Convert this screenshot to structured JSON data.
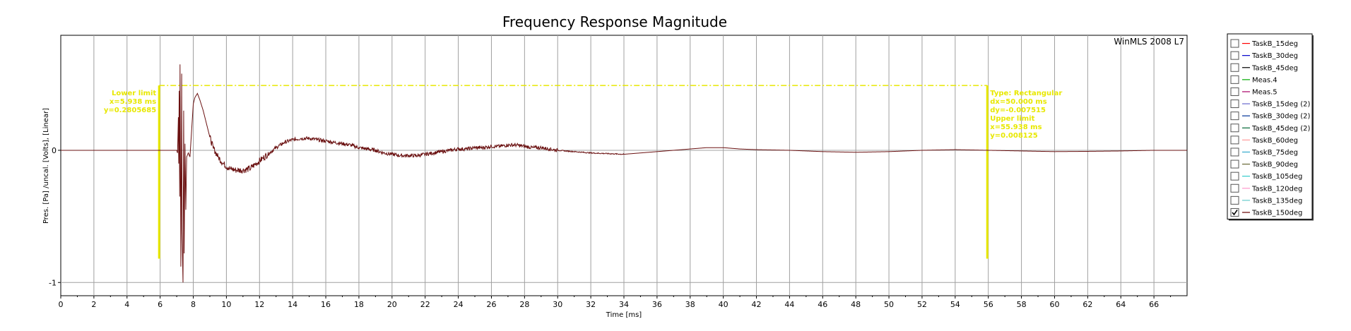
{
  "chart_data": {
    "type": "line",
    "title": "Frequency Response Magnitude",
    "brand": "WinMLS 2008 L7",
    "xlabel": "Time [ms]",
    "ylabel": "Pres. [Pa] /uncal. [Volts], [Linear]",
    "xlim": [
      0,
      68
    ],
    "ylim": [
      -1.1,
      0.87
    ],
    "x_ticks": [
      "0",
      "2",
      "4",
      "6",
      "8",
      "10",
      "12",
      "14",
      "16",
      "18",
      "20",
      "22",
      "24",
      "26",
      "28",
      "30",
      "32",
      "34",
      "36",
      "38",
      "40",
      "42",
      "44",
      "46",
      "48",
      "50",
      "52",
      "54",
      "56",
      "58",
      "60",
      "62",
      "64",
      "66"
    ],
    "y_ticks": [
      {
        "value": 0,
        "label": "0"
      },
      {
        "value": -1,
        "label": "-1"
      }
    ],
    "grid": true,
    "legend_position": "right",
    "series": [
      {
        "name": "TaskB_150deg",
        "color": "#6a1010",
        "points": [
          [
            0,
            0
          ],
          [
            7.0,
            0
          ],
          [
            7.05,
            -0.02
          ],
          [
            7.1,
            0.25
          ],
          [
            7.12,
            -0.1
          ],
          [
            7.15,
            0.45
          ],
          [
            7.18,
            -0.35
          ],
          [
            7.2,
            0.65
          ],
          [
            7.25,
            -0.88
          ],
          [
            7.3,
            0.58
          ],
          [
            7.32,
            -0.6
          ],
          [
            7.38,
            -1.0
          ],
          [
            7.42,
            0.3
          ],
          [
            7.45,
            -0.78
          ],
          [
            7.5,
            0.05
          ],
          [
            7.55,
            -0.45
          ],
          [
            7.6,
            -0.05
          ],
          [
            7.7,
            -0.02
          ],
          [
            7.8,
            -0.05
          ],
          [
            7.9,
            0.15
          ],
          [
            8.0,
            0.35
          ],
          [
            8.1,
            0.4
          ],
          [
            8.25,
            0.43
          ],
          [
            8.4,
            0.38
          ],
          [
            8.6,
            0.3
          ],
          [
            8.8,
            0.2
          ],
          [
            9.0,
            0.1
          ],
          [
            9.2,
            0.02
          ],
          [
            9.5,
            -0.05
          ],
          [
            9.8,
            -0.1
          ],
          [
            10.2,
            -0.14
          ],
          [
            10.6,
            -0.15
          ],
          [
            11.0,
            -0.15
          ],
          [
            11.4,
            -0.14
          ],
          [
            11.8,
            -0.1
          ],
          [
            12.2,
            -0.06
          ],
          [
            12.6,
            -0.02
          ],
          [
            13.0,
            0.02
          ],
          [
            13.5,
            0.06
          ],
          [
            14.0,
            0.08
          ],
          [
            14.5,
            0.09
          ],
          [
            15.0,
            0.09
          ],
          [
            15.5,
            0.08
          ],
          [
            16.0,
            0.07
          ],
          [
            16.5,
            0.06
          ],
          [
            17.0,
            0.05
          ],
          [
            17.5,
            0.04
          ],
          [
            18.0,
            0.02
          ],
          [
            18.5,
            0.01
          ],
          [
            19.0,
            0.0
          ],
          [
            19.5,
            -0.02
          ],
          [
            20.0,
            -0.03
          ],
          [
            20.5,
            -0.04
          ],
          [
            21.0,
            -0.04
          ],
          [
            21.5,
            -0.04
          ],
          [
            22.0,
            -0.03
          ],
          [
            22.5,
            -0.02
          ],
          [
            23.0,
            -0.01
          ],
          [
            23.5,
            0.0
          ],
          [
            24.0,
            0.01
          ],
          [
            24.5,
            0.01
          ],
          [
            25.0,
            0.02
          ],
          [
            25.5,
            0.02
          ],
          [
            26.0,
            0.03
          ],
          [
            26.5,
            0.03
          ],
          [
            27.0,
            0.04
          ],
          [
            27.5,
            0.04
          ],
          [
            28.0,
            0.03
          ],
          [
            28.5,
            0.02
          ],
          [
            29.0,
            0.02
          ],
          [
            29.5,
            0.01
          ],
          [
            30.0,
            0.0
          ],
          [
            31.0,
            -0.01
          ],
          [
            32.0,
            -0.02
          ],
          [
            33.0,
            -0.025
          ],
          [
            34.0,
            -0.03
          ],
          [
            35.0,
            -0.02
          ],
          [
            36.0,
            -0.01
          ],
          [
            37.0,
            0.0
          ],
          [
            38.0,
            0.01
          ],
          [
            39.0,
            0.02
          ],
          [
            40.0,
            0.02
          ],
          [
            41.0,
            0.01
          ],
          [
            42.0,
            0.005
          ],
          [
            44.0,
            0.0
          ],
          [
            46.0,
            -0.01
          ],
          [
            48.0,
            -0.015
          ],
          [
            50.0,
            -0.01
          ],
          [
            52.0,
            0.0
          ],
          [
            54.0,
            0.005
          ],
          [
            56.0,
            0.0
          ],
          [
            58.0,
            -0.005
          ],
          [
            60.0,
            -0.01
          ],
          [
            62.0,
            -0.008
          ],
          [
            64.0,
            -0.005
          ],
          [
            66.0,
            0.0
          ],
          [
            68.0,
            0.0
          ]
        ]
      }
    ],
    "cursors": {
      "color": "#e8e800",
      "lower": {
        "x": 5.938,
        "y_bottom": -0.82,
        "y_top": 0.49,
        "text": [
          "Lower limit",
          "x=5.938 ms",
          "y=0.2805685"
        ]
      },
      "upper": {
        "x": 55.938,
        "y_bottom": -0.82,
        "y_top": 0.49,
        "text": [
          "Type: Rectangular",
          "dx=50.000 ms",
          "dy=-0.007515",
          "Upper limit",
          "x=55.938 ms",
          "y=0.008125"
        ]
      },
      "level": 0.49
    },
    "legend": [
      {
        "name": "TaskB_15deg",
        "color": "#ff0000",
        "checked": false
      },
      {
        "name": "TaskB_30deg",
        "color": "#0000cc",
        "checked": false
      },
      {
        "name": "TaskB_45deg",
        "color": "#000000",
        "checked": false
      },
      {
        "name": "Meas.4",
        "color": "#00aa00",
        "checked": false
      },
      {
        "name": "Meas.5",
        "color": "#aa0066",
        "checked": false
      },
      {
        "name": "TaskB_15deg (2)",
        "color": "#6666cc",
        "checked": false
      },
      {
        "name": "TaskB_30deg (2)",
        "color": "#003399",
        "checked": false
      },
      {
        "name": "TaskB_45deg (2)",
        "color": "#006633",
        "checked": false
      },
      {
        "name": "TaskB_60deg",
        "color": "#ff9999",
        "checked": false
      },
      {
        "name": "TaskB_75deg",
        "color": "#33aacc",
        "checked": false
      },
      {
        "name": "TaskB_90deg",
        "color": "#666633",
        "checked": false
      },
      {
        "name": "TaskB_105deg",
        "color": "#33cccc",
        "checked": false
      },
      {
        "name": "TaskB_120deg",
        "color": "#ff99cc",
        "checked": false
      },
      {
        "name": "TaskB_135deg",
        "color": "#66cccc",
        "checked": false
      },
      {
        "name": "TaskB_150deg",
        "color": "#660000",
        "checked": true
      }
    ]
  }
}
